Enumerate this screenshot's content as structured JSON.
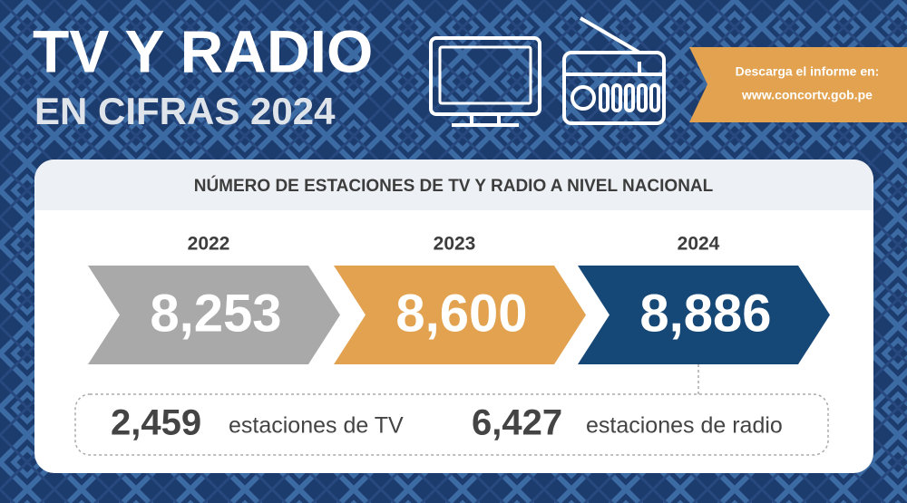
{
  "header": {
    "title": "TV Y RADIO",
    "subtitle": "EN CIFRAS 2024"
  },
  "download": {
    "label": "Descarga el informe en:",
    "url": "www.concortv.gob.pe"
  },
  "panel": {
    "title": "NÚMERO DE ESTACIONES DE TV Y RADIO A NIVEL NACIONAL",
    "years": [
      {
        "year": "2022",
        "value": "8,253"
      },
      {
        "year": "2023",
        "value": "8,600"
      },
      {
        "year": "2024",
        "value": "8,886"
      }
    ],
    "breakdown": [
      {
        "value": "2,459",
        "label": "estaciones de TV"
      },
      {
        "value": "6,427",
        "label": "estaciones de radio"
      }
    ]
  }
}
